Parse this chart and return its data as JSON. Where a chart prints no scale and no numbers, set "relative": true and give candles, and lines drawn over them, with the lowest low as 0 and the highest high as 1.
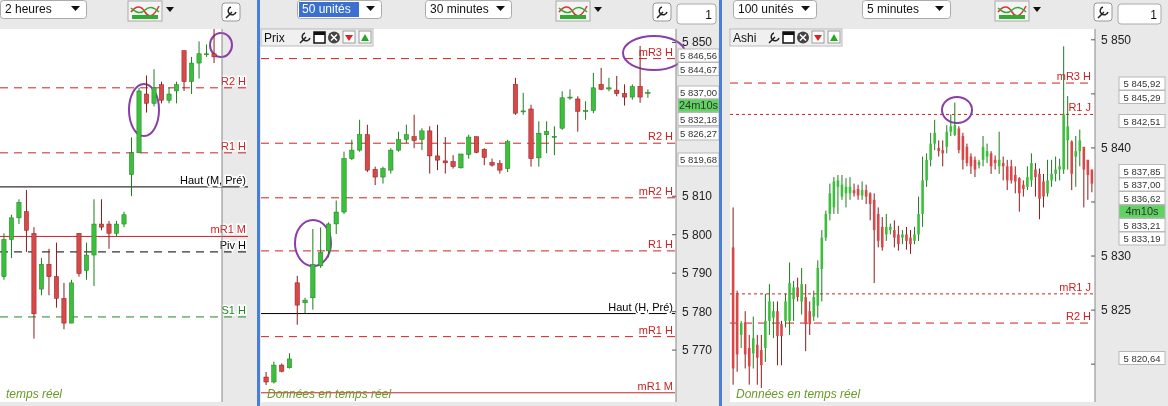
{
  "chart_data": [
    {
      "type": "candlestick",
      "relative": true,
      "subtitle": "temps réel",
      "categories": [
        null,
        null,
        null,
        null,
        null,
        null,
        null,
        null,
        null,
        null,
        null,
        null,
        null,
        null,
        null,
        null,
        null,
        null,
        null,
        null,
        null,
        null,
        null,
        null,
        null,
        null,
        null,
        null,
        null
      ],
      "ohlc": [
        [
          0.2,
          0.34,
          0.19,
          0.32
        ],
        [
          0.32,
          0.4,
          0.26,
          0.39
        ],
        [
          0.39,
          0.45,
          0.37,
          0.44
        ],
        [
          0.41,
          0.48,
          0.28,
          0.35
        ],
        [
          0.34,
          0.36,
          0,
          0.08
        ],
        [
          0.16,
          0.26,
          0.14,
          0.24
        ],
        [
          0.24,
          0.29,
          0.14,
          0.2
        ],
        [
          0.2,
          0.31,
          0.1,
          0.13
        ],
        [
          0.13,
          0.18,
          0.03,
          0.05
        ],
        [
          0.05,
          0.19,
          0.05,
          0.18
        ],
        [
          0.34,
          0.34,
          0.2,
          0.21
        ],
        [
          0.22,
          0.31,
          0.19,
          0.27
        ],
        [
          0.27,
          0.45,
          0.17,
          0.37
        ],
        [
          0.37,
          0.45,
          0.35,
          0.36
        ],
        [
          0.37,
          0.38,
          0.29,
          0.34
        ],
        [
          0.34,
          0.38,
          0.33,
          0.37
        ],
        [
          0.37,
          0.41,
          0.36,
          0.4
        ],
        [
          0.53,
          0.65,
          0.46,
          0.6
        ],
        [
          0.6,
          0.81,
          0.6,
          0.8
        ],
        [
          0.79,
          0.85,
          0.73,
          0.76
        ],
        [
          0.76,
          0.87,
          0.75,
          0.81
        ],
        [
          0.82,
          0.83,
          0.76,
          0.77
        ],
        [
          0.77,
          0.81,
          0.76,
          0.79
        ],
        [
          0.8,
          0.83,
          0.76,
          0.82
        ],
        [
          0.93,
          0.93,
          0.8,
          0.83
        ],
        [
          0.83,
          0.91,
          0.79,
          0.89
        ],
        [
          0.89,
          0.96,
          0.84,
          0.92
        ],
        [
          0.92,
          0.95,
          0.91,
          0.92
        ],
        [
          0.92,
          1,
          0.89,
          0.91
        ]
      ],
      "ref_lines": [
        {
          "axis": "y",
          "value": 0.81,
          "label": "R2 H",
          "color": "#cc2222",
          "line_style": "dashed"
        },
        {
          "axis": "y",
          "value": 0.6,
          "label": "R1 H",
          "color": "#cc2222",
          "line_style": "dashed"
        },
        {
          "axis": "y",
          "value": 0.49,
          "label": "Haut (M, Pré)",
          "color": "#000000",
          "line_style": "solid"
        },
        {
          "axis": "y",
          "value": 0.33,
          "label": "mR1 M",
          "color": "#cc2222",
          "line_style": "solid"
        },
        {
          "axis": "y",
          "value": 0.28,
          "label": "Piv H",
          "color": "#000000",
          "line_style": "dashed"
        },
        {
          "axis": "y",
          "value": 0.07,
          "label": "S1 H",
          "color": "#228822",
          "line_style": "dashed"
        }
      ],
      "annotations": [
        "2 heures"
      ]
    },
    {
      "type": "candlestick",
      "subtitle": "Données en temps réel",
      "categories": [
        null,
        null,
        null,
        null,
        null,
        null,
        null,
        null,
        null,
        null,
        null,
        null,
        null,
        null,
        null,
        null,
        null,
        null,
        null,
        null,
        null,
        null,
        null,
        null,
        null,
        null,
        null,
        null,
        null,
        null,
        null,
        null,
        null,
        null,
        null,
        null,
        null,
        null,
        null,
        null,
        null,
        null,
        null,
        null,
        null,
        null,
        null,
        null,
        null,
        null
      ],
      "ylim": [
        5756.5,
        5853.5
      ],
      "yticks": [
        {
          "value": 5770,
          "label": "5 770"
        },
        {
          "value": 5780,
          "label": "5 780"
        },
        {
          "value": 5790,
          "label": "5 790"
        },
        {
          "value": 5800,
          "label": "5 800"
        },
        {
          "value": 5810,
          "label": "5 810"
        },
        {
          "value": 5850,
          "label": "5 850"
        }
      ],
      "ohlc": [
        [
          5763.0,
          5764.3,
          5760.9,
          5761.7
        ],
        [
          5761.7,
          5767.0,
          5761.3,
          5766.1
        ],
        [
          5766.1,
          5766.5,
          5764.2,
          5764.5
        ],
        [
          5765.4,
          5769.2,
          5765.2,
          5767.7
        ],
        [
          5787.5,
          5789.3,
          5776.6,
          5781.7
        ],
        [
          5782.3,
          5783.6,
          5779.6,
          5783.0
        ],
        [
          5783.6,
          5801.5,
          5780.5,
          5792.3
        ],
        [
          5791.9,
          5801.9,
          5791.4,
          5795.4
        ],
        [
          5795.8,
          5803.2,
          5794.1,
          5802.8
        ],
        [
          5802.8,
          5808.9,
          5800.2,
          5805.9
        ],
        [
          5805.9,
          5821.6,
          5805.4,
          5819.8
        ],
        [
          5819.8,
          5824.7,
          5819.4,
          5822.0
        ],
        [
          5822.0,
          5829.9,
          5821.6,
          5826.0
        ],
        [
          5826.0,
          5828.6,
          5816.3,
          5816.8
        ],
        [
          5817.0,
          5817.7,
          5812.9,
          5815.0
        ],
        [
          5815.0,
          5817.7,
          5813.3,
          5817.2
        ],
        [
          5816.8,
          5822.5,
          5815.9,
          5822.0
        ],
        [
          5822.0,
          5826.8,
          5821.6,
          5824.7
        ],
        [
          5824.8,
          5828.6,
          5823.8,
          5826.0
        ],
        [
          5825.5,
          5831.2,
          5822.5,
          5824.5
        ],
        [
          5824.8,
          5827.7,
          5822.0,
          5827.0
        ],
        [
          5827.0,
          5828.2,
          5815.9,
          5820.5
        ],
        [
          5820.5,
          5828.6,
          5816.8,
          5819.4
        ],
        [
          5819.2,
          5825.4,
          5815.9,
          5818.7
        ],
        [
          5819.0,
          5820.7,
          5817.2,
          5817.7
        ],
        [
          5817.4,
          5821.0,
          5817.2,
          5821.0
        ],
        [
          5820.9,
          5826.0,
          5819.8,
          5825.4
        ],
        [
          5825.5,
          5825.5,
          5821.2,
          5821.4
        ],
        [
          5822.2,
          5822.5,
          5818.1,
          5820.1
        ],
        [
          5818.8,
          5819.8,
          5817.7,
          5818.1
        ],
        [
          5818.5,
          5819.4,
          5815.9,
          5816.8
        ],
        [
          5817.2,
          5824.7,
          5816.3,
          5824.2
        ],
        [
          5839.1,
          5840.8,
          5831.2,
          5831.6
        ],
        [
          5832.1,
          5836.9,
          5831.2,
          5832.2
        ],
        [
          5832.7,
          5833.8,
          5817.7,
          5819.8
        ],
        [
          5820.0,
          5829.5,
          5817.7,
          5826.4
        ],
        [
          5826.0,
          5829.5,
          5821.2,
          5826.8
        ],
        [
          5825.5,
          5828.2,
          5820.7,
          5825.6
        ],
        [
          5827.7,
          5837.3,
          5827.3,
          5835.6
        ],
        [
          5835.6,
          5837.8,
          5835.1,
          5835.8
        ],
        [
          5835.3,
          5836.0,
          5826.8,
          5832.1
        ],
        [
          5832.1,
          5834.7,
          5829.9,
          5832.3
        ],
        [
          5832.3,
          5842.1,
          5831.6,
          5838.2
        ],
        [
          5839.1,
          5843.4,
          5837.6,
          5837.8
        ],
        [
          5837.9,
          5840.8,
          5837.3,
          5838.2
        ],
        [
          5837.6,
          5841.3,
          5836.0,
          5836.7
        ],
        [
          5836.7,
          5839.1,
          5833.6,
          5835.8
        ],
        [
          5835.8,
          5839.1,
          5835.1,
          5838.5
        ],
        [
          5838.6,
          5849.1,
          5834.3,
          5835.8
        ],
        [
          5836.8,
          5837.8,
          5835.6,
          5837.0
        ]
      ],
      "ref_lines": [
        {
          "axis": "y",
          "value": 5845.8,
          "label": "mR3 H",
          "color": "#cc2222",
          "line_style": "dashed"
        },
        {
          "axis": "y",
          "value": 5823.8,
          "label": "R2 H",
          "color": "#cc2222",
          "line_style": "dashed"
        },
        {
          "axis": "y",
          "value": 5809.6,
          "label": "mR2 H",
          "color": "#cc2222",
          "line_style": "dashed"
        },
        {
          "axis": "y",
          "value": 5795.8,
          "label": "R1 H",
          "color": "#cc2222",
          "line_style": "dashed"
        },
        {
          "axis": "y",
          "value": 5779.5,
          "label": "Haut (H, Pré)",
          "color": "#000000",
          "line_style": "solid"
        },
        {
          "axis": "y",
          "value": 5773.5,
          "label": "mR1 H",
          "color": "#cc2222",
          "line_style": "dashed"
        },
        {
          "axis": "y",
          "value": 5758.9,
          "label": "mR1 M",
          "color": "#cc2222",
          "line_style": "solid"
        }
      ],
      "annotations": [
        "50 unités",
        "30 minutes",
        "1",
        "Prix",
        "5 846,56",
        "5 844,67",
        "5 837,00",
        "24m10s",
        "5 832,18",
        "5 826,27",
        "5 819,68"
      ]
    },
    {
      "type": "candlestick",
      "subtitle": "Données en temps réel",
      "categories": [
        null,
        null,
        null,
        null,
        null,
        null,
        null,
        null,
        null,
        null,
        null,
        null,
        null,
        null,
        null,
        null,
        null,
        null,
        null,
        null,
        null,
        null,
        null,
        null,
        null,
        null,
        null,
        null,
        null,
        null,
        null,
        null,
        null,
        null,
        null,
        null,
        null,
        null,
        null,
        null,
        null,
        null,
        null,
        null,
        null,
        null,
        null,
        null,
        null,
        null,
        null,
        null,
        null,
        null,
        null,
        null,
        null,
        null,
        null,
        null,
        null,
        null,
        null,
        null,
        null,
        null,
        null,
        null,
        null,
        null,
        null,
        null,
        null,
        null,
        null,
        null,
        null,
        null,
        null,
        null,
        null,
        null,
        null,
        null,
        null,
        null,
        null,
        null,
        null,
        null
      ],
      "ylim": [
        5816.5,
        5851
      ],
      "yticks": [
        {
          "value": 5820,
          "label": null
        },
        {
          "value": 5825,
          "label": "5 825"
        },
        {
          "value": 5830,
          "label": "5 830"
        },
        {
          "value": 5835,
          "label": null
        },
        {
          "value": 5840,
          "label": "5 840"
        },
        {
          "value": 5845,
          "label": null
        },
        {
          "value": 5850,
          "label": "5 850"
        }
      ],
      "ohlc": [
        [
          5830.8,
          5834.5,
          5818.1,
          5819.6
        ],
        [
          5826.5,
          5826.8,
          5819.3,
          5820.9
        ],
        [
          5822.7,
          5824.0,
          5821.5,
          5823.8
        ],
        [
          5823.8,
          5824.9,
          5819.6,
          5820.9
        ],
        [
          5821.5,
          5822.7,
          5818.1,
          5819.8
        ],
        [
          5821.0,
          5824.4,
          5819.6,
          5822.4
        ],
        [
          5821.8,
          5822.7,
          5818.1,
          5820.6
        ],
        [
          5821.3,
          5822.7,
          5817.8,
          5819.9
        ],
        [
          5821.5,
          5826.5,
          5820.2,
          5824.0
        ],
        [
          5824.0,
          5827.4,
          5822.7,
          5825.8
        ],
        [
          5824.3,
          5825.8,
          5822.4,
          5824.9
        ],
        [
          5824.9,
          5825.8,
          5819.9,
          5822.6
        ],
        [
          5823.7,
          5824.0,
          5819.9,
          5822.6
        ],
        [
          5824.0,
          5826.5,
          5823.4,
          5825.8
        ],
        [
          5824.0,
          5829.4,
          5822.7,
          5827.5
        ],
        [
          5826.0,
          5827.7,
          5824.0,
          5827.1
        ],
        [
          5827.1,
          5828.0,
          5825.8,
          5826.2
        ],
        [
          5825.8,
          5828.9,
          5824.6,
          5827.4
        ],
        [
          5826.2,
          5827.4,
          5821.2,
          5823.7
        ],
        [
          5824.9,
          5825.8,
          5822.7,
          5823.7
        ],
        [
          5824.4,
          5826.8,
          5824.0,
          5826.2
        ],
        [
          5825.4,
          5829.6,
          5824.3,
          5828.9
        ],
        [
          5828.8,
          5832.4,
          5825.8,
          5831.7
        ],
        [
          5831.7,
          5834.2,
          5831.4,
          5833.9
        ],
        [
          5833.9,
          5836.7,
          5833.3,
          5835.8
        ],
        [
          5834.5,
          5837.3,
          5833.9,
          5836.9
        ],
        [
          5836.4,
          5837.5,
          5833.9,
          5837.0
        ],
        [
          5835.5,
          5837.5,
          5835.2,
          5836.6
        ],
        [
          5835.8,
          5837.2,
          5834.5,
          5836.4
        ],
        [
          5835.8,
          5837.3,
          5835.2,
          5836.4
        ],
        [
          5836.1,
          5836.7,
          5835.5,
          5835.8
        ],
        [
          5836.2,
          5836.6,
          5835.2,
          5835.6
        ],
        [
          5835.6,
          5836.9,
          5835.2,
          5836.1
        ],
        [
          5836.1,
          5836.6,
          5834.8,
          5835.5
        ],
        [
          5835.8,
          5835.9,
          5833.3,
          5834.8
        ],
        [
          5835.2,
          5835.8,
          5827.5,
          5832.4
        ],
        [
          5833.9,
          5834.5,
          5830.8,
          5831.4
        ],
        [
          5832.7,
          5833.6,
          5830.5,
          5830.8
        ],
        [
          5832.0,
          5833.9,
          5831.4,
          5832.7
        ],
        [
          5832.4,
          5833.0,
          5832.0,
          5832.7
        ],
        [
          5832.4,
          5833.3,
          5830.8,
          5831.7
        ],
        [
          5832.0,
          5832.8,
          5830.5,
          5831.1
        ],
        [
          5831.7,
          5832.4,
          5831.1,
          5832.0
        ],
        [
          5832.0,
          5832.7,
          5830.6,
          5831.4
        ],
        [
          5831.7,
          5832.4,
          5830.2,
          5831.1
        ],
        [
          5831.4,
          5832.7,
          5831.1,
          5832.0
        ],
        [
          5832.0,
          5835.5,
          5831.4,
          5833.9
        ],
        [
          5833.9,
          5839.2,
          5832.7,
          5837.0
        ],
        [
          5837.0,
          5839.5,
          5836.4,
          5838.9
        ],
        [
          5838.9,
          5841.4,
          5838.3,
          5840.4
        ],
        [
          5840.4,
          5842.6,
          5839.8,
          5841.4
        ],
        [
          5840.0,
          5840.7,
          5839.2,
          5839.7
        ],
        [
          5839.8,
          5840.7,
          5838.3,
          5839.5
        ],
        [
          5840.1,
          5842.1,
          5839.5,
          5841.5
        ],
        [
          5841.5,
          5843.1,
          5841.1,
          5842.0
        ],
        [
          5841.2,
          5844.2,
          5841.1,
          5842.1
        ],
        [
          5841.8,
          5842.0,
          5839.5,
          5839.8
        ],
        [
          5841.1,
          5841.4,
          5838.0,
          5838.9
        ],
        [
          5840.1,
          5840.4,
          5838.3,
          5838.6
        ],
        [
          5839.2,
          5839.5,
          5837.6,
          5838.3
        ],
        [
          5838.9,
          5839.2,
          5837.3,
          5838.0
        ],
        [
          5838.4,
          5838.9,
          5838.1,
          5838.7
        ],
        [
          5838.9,
          5841.1,
          5838.3,
          5840.1
        ],
        [
          5839.2,
          5840.4,
          5838.6,
          5839.7
        ],
        [
          5839.5,
          5839.7,
          5837.6,
          5838.3
        ],
        [
          5838.9,
          5839.3,
          5838.0,
          5838.6
        ],
        [
          5838.3,
          5841.5,
          5837.6,
          5838.9
        ],
        [
          5838.6,
          5839.2,
          5837.0,
          5838.3
        ],
        [
          5838.3,
          5838.9,
          5836.1,
          5837.0
        ],
        [
          5838.3,
          5838.9,
          5836.7,
          5837.0
        ],
        [
          5837.5,
          5838.3,
          5835.8,
          5836.9
        ],
        [
          5837.2,
          5837.3,
          5834.1,
          5835.8
        ],
        [
          5836.6,
          5837.0,
          5835.5,
          5836.2
        ],
        [
          5836.4,
          5838.3,
          5836.1,
          5837.3
        ],
        [
          5837.0,
          5839.5,
          5836.4,
          5838.6
        ],
        [
          5838.0,
          5838.6,
          5835.5,
          5837.3
        ],
        [
          5837.6,
          5838.1,
          5833.4,
          5835.3
        ],
        [
          5836.9,
          5837.6,
          5834.5,
          5835.5
        ],
        [
          5835.8,
          5838.9,
          5835.5,
          5837.0
        ],
        [
          5837.0,
          5838.9,
          5836.4,
          5837.6
        ],
        [
          5837.6,
          5839.2,
          5836.9,
          5838.0
        ],
        [
          5838.0,
          5839.0,
          5837.0,
          5838.3
        ],
        [
          5838.0,
          5849.4,
          5837.6,
          5843.1
        ],
        [
          5840.7,
          5844.8,
          5838.0,
          5842.0
        ],
        [
          5840.6,
          5840.7,
          5836.1,
          5837.6
        ],
        [
          5839.2,
          5841.1,
          5836.4,
          5839.7
        ],
        [
          5839.7,
          5841.7,
          5838.3,
          5840.7
        ],
        [
          5840.1,
          5840.1,
          5834.5,
          5838.0
        ],
        [
          5838.9,
          5838.9,
          5835.2,
          5837.5
        ],
        [
          5838.0,
          5838.0,
          5835.9,
          5836.7
        ]
      ],
      "ref_lines": [
        {
          "axis": "y",
          "value": 5846.0,
          "label": "mR3 H",
          "color": "#cc2222",
          "line_style": "dashed"
        },
        {
          "axis": "y",
          "value": 5843.1,
          "label": "R1 J",
          "color": "#cc2222",
          "line_style": "dotted"
        },
        {
          "axis": "y",
          "value": 5826.5,
          "label": "mR1 J",
          "color": "#cc2222",
          "line_style": "dotted"
        },
        {
          "axis": "y",
          "value": 5823.8,
          "label": "R2 H",
          "color": "#cc2222",
          "line_style": "dashed"
        }
      ],
      "annotations": [
        "100 unités",
        "5 minutes",
        "1",
        "Ashi",
        "5 845,92",
        "5 845,29",
        "5 842,51",
        "5 837,85",
        "5 837,00",
        "5 836,62",
        "4m10s",
        "5 833,21",
        "5 833,19",
        "5 820,64"
      ]
    }
  ]
}
